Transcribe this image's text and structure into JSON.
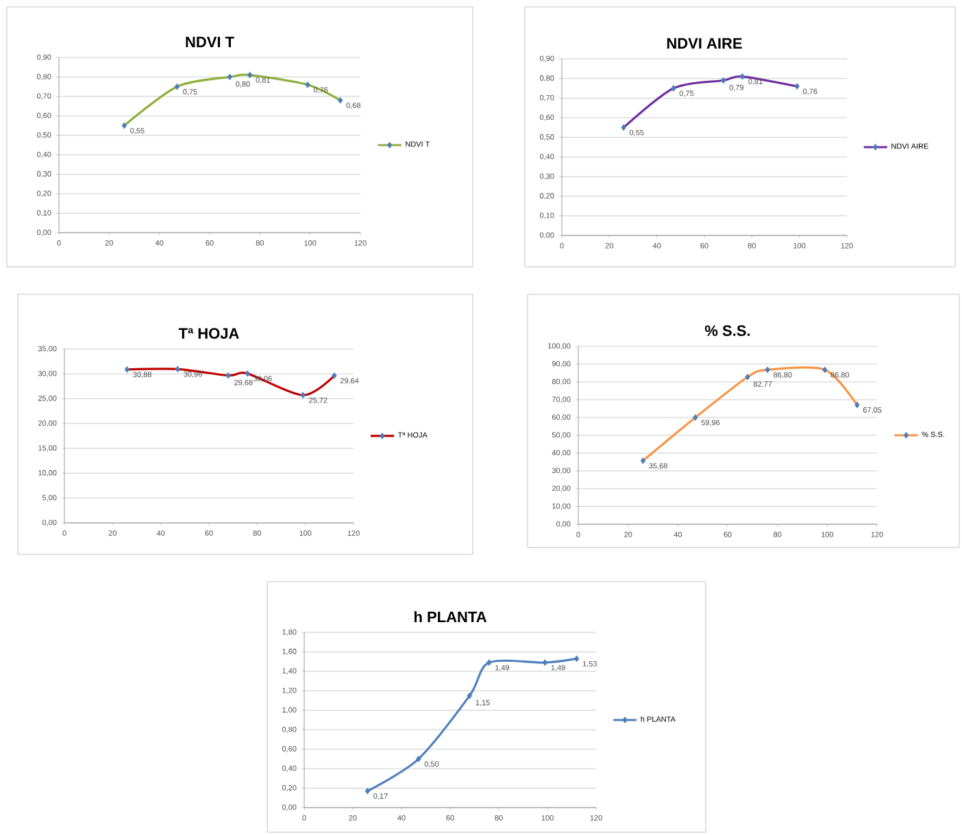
{
  "chart_data": [
    {
      "type": "line",
      "title": "NDVI T",
      "x": [
        26,
        47,
        68,
        76,
        99,
        112
      ],
      "series": [
        {
          "name": "NDVI T",
          "color": "#8db03c",
          "values": [
            0.55,
            0.75,
            0.8,
            0.81,
            0.76,
            0.68
          ],
          "value_labels": [
            "0,55",
            "0,75",
            "0,80",
            "0,81",
            "0,76",
            "0,68"
          ]
        }
      ],
      "xlim": [
        0,
        120
      ],
      "xticks": [
        0,
        20,
        40,
        60,
        80,
        100,
        120
      ],
      "ylim": [
        0,
        0.9
      ],
      "yticks": [
        {
          "value": 0,
          "label": "0,00"
        },
        {
          "value": 0.1,
          "label": "0,10"
        },
        {
          "value": 0.2,
          "label": "0,20"
        },
        {
          "value": 0.3,
          "label": "0,30"
        },
        {
          "value": 0.4,
          "label": "0,40"
        },
        {
          "value": 0.5,
          "label": "0,50"
        },
        {
          "value": 0.6,
          "label": "0,60"
        },
        {
          "value": 0.7,
          "label": "0,70"
        },
        {
          "value": 0.8,
          "label": "0,80"
        },
        {
          "value": 0.9,
          "label": "0,90"
        }
      ],
      "grid": "y",
      "legend": "right",
      "marker": "diamond"
    },
    {
      "type": "line",
      "title": "NDVI AIRE",
      "x": [
        26,
        47,
        68,
        76,
        99
      ],
      "series": [
        {
          "name": "NDVI AIRE",
          "color": "#7030a0",
          "values": [
            0.55,
            0.75,
            0.79,
            0.81,
            0.76
          ],
          "value_labels": [
            "0,55",
            "0,75",
            "0,79",
            "0,81",
            "0,76"
          ]
        }
      ],
      "xlim": [
        0,
        120
      ],
      "xticks": [
        0,
        20,
        40,
        60,
        80,
        100,
        120
      ],
      "ylim": [
        0,
        0.9
      ],
      "yticks": [
        {
          "value": 0,
          "label": "0,00"
        },
        {
          "value": 0.1,
          "label": "0,10"
        },
        {
          "value": 0.2,
          "label": "0,20"
        },
        {
          "value": 0.3,
          "label": "0,30"
        },
        {
          "value": 0.4,
          "label": "0,40"
        },
        {
          "value": 0.5,
          "label": "0,50"
        },
        {
          "value": 0.6,
          "label": "0,60"
        },
        {
          "value": 0.7,
          "label": "0,70"
        },
        {
          "value": 0.8,
          "label": "0,80"
        },
        {
          "value": 0.9,
          "label": "0,90"
        }
      ],
      "grid": "y",
      "legend": "right",
      "marker": "diamond"
    },
    {
      "type": "line",
      "title": "Tª HOJA",
      "x": [
        26,
        47,
        68,
        76,
        99,
        112
      ],
      "series": [
        {
          "name": "Tª HOJA",
          "color": "#c00000",
          "values": [
            30.88,
            30.96,
            29.68,
            30.06,
            25.72,
            29.64
          ],
          "value_labels": [
            "30,88",
            "30,96",
            "29,68",
            "30,06",
            "25,72",
            "29,64"
          ]
        }
      ],
      "xlim": [
        0,
        120
      ],
      "xticks": [
        0,
        20,
        40,
        60,
        80,
        100,
        120
      ],
      "ylim": [
        0,
        35
      ],
      "yticks": [
        {
          "value": 0,
          "label": "0,00"
        },
        {
          "value": 5,
          "label": "5,00"
        },
        {
          "value": 10,
          "label": "10,00"
        },
        {
          "value": 15,
          "label": "15,00"
        },
        {
          "value": 20,
          "label": "20,00"
        },
        {
          "value": 25,
          "label": "25,00"
        },
        {
          "value": 30,
          "label": "30,00"
        },
        {
          "value": 35,
          "label": "35,00"
        }
      ],
      "grid": "y",
      "legend": "right",
      "marker": "diamond"
    },
    {
      "type": "line",
      "title": "% S.S.",
      "x": [
        26,
        47,
        68,
        76,
        99,
        112
      ],
      "series": [
        {
          "name": "% S.S.",
          "color": "#f79646",
          "values": [
            35.68,
            59.96,
            82.77,
            86.8,
            86.8,
            67.05
          ],
          "value_labels": [
            "35,68",
            "59,96",
            "82,77",
            "86,80",
            "86,80",
            "67,05"
          ]
        }
      ],
      "xlim": [
        0,
        120
      ],
      "xticks": [
        0,
        20,
        40,
        60,
        80,
        100,
        120
      ],
      "ylim": [
        0,
        100
      ],
      "yticks": [
        {
          "value": 0,
          "label": "0,00"
        },
        {
          "value": 10,
          "label": "10,00"
        },
        {
          "value": 20,
          "label": "20,00"
        },
        {
          "value": 30,
          "label": "30,00"
        },
        {
          "value": 40,
          "label": "40,00"
        },
        {
          "value": 50,
          "label": "50,00"
        },
        {
          "value": 60,
          "label": "60,00"
        },
        {
          "value": 70,
          "label": "70,00"
        },
        {
          "value": 80,
          "label": "80,00"
        },
        {
          "value": 90,
          "label": "90,00"
        },
        {
          "value": 100,
          "label": "100,00"
        }
      ],
      "grid": "y",
      "legend": "right",
      "marker": "diamond"
    },
    {
      "type": "line",
      "title": "h PLANTA",
      "x": [
        26,
        47,
        68,
        76,
        99,
        112
      ],
      "series": [
        {
          "name": "h PLANTA",
          "color": "#4f81bd",
          "values": [
            0.17,
            0.5,
            1.15,
            1.49,
            1.49,
            1.53
          ],
          "value_labels": [
            "0,17",
            "0,50",
            "1,15",
            "1,49",
            "1,49",
            "1,53"
          ]
        }
      ],
      "xlim": [
        0,
        120
      ],
      "xticks": [
        0,
        20,
        40,
        60,
        80,
        100,
        120
      ],
      "ylim": [
        0,
        1.8
      ],
      "yticks": [
        {
          "value": 0,
          "label": "0,00"
        },
        {
          "value": 0.2,
          "label": "0,20"
        },
        {
          "value": 0.4,
          "label": "0,40"
        },
        {
          "value": 0.6,
          "label": "0,60"
        },
        {
          "value": 0.8,
          "label": "0,80"
        },
        {
          "value": 1.0,
          "label": "1,00"
        },
        {
          "value": 1.2,
          "label": "1,20"
        },
        {
          "value": 1.4,
          "label": "1,40"
        },
        {
          "value": 1.6,
          "label": "1,60"
        },
        {
          "value": 1.8,
          "label": "1,80"
        }
      ],
      "grid": "y",
      "legend": "right",
      "marker": "diamond"
    }
  ]
}
